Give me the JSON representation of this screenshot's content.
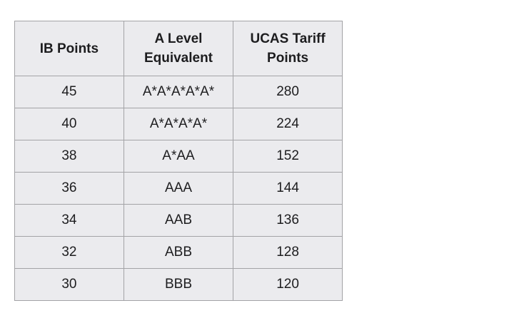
{
  "table": {
    "headers": [
      "IB Points",
      "A Level Equivalent",
      "UCAS Tariff Points"
    ],
    "header_lines": [
      [
        "IB Points"
      ],
      [
        "A Level",
        "Equivalent"
      ],
      [
        "UCAS Tariff",
        "Points"
      ]
    ],
    "rows": [
      [
        "45",
        "A*A*A*A*A*",
        "280"
      ],
      [
        "40",
        "A*A*A*A*",
        "224"
      ],
      [
        "38",
        "A*AA",
        "152"
      ],
      [
        "36",
        "AAA",
        "144"
      ],
      [
        "34",
        "AAB",
        "136"
      ],
      [
        "32",
        "ABB",
        "128"
      ],
      [
        "30",
        "BBB",
        "120"
      ]
    ]
  },
  "colors": {
    "cell_background": "#ebebee",
    "border": "#a3a3a6",
    "text": "#1d1d1f"
  }
}
